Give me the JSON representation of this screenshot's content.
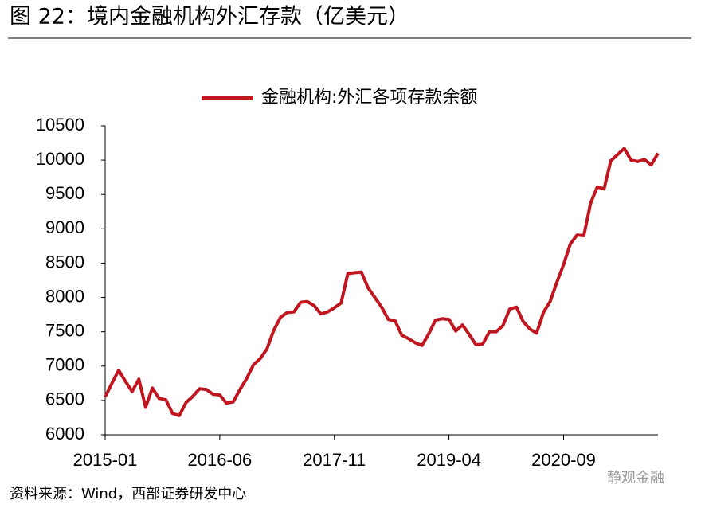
{
  "chart_data": {
    "type": "line",
    "title": "图 22：境内金融机构外汇存款（亿美元）",
    "source": "资料来源：Wind，西部证券研发中心",
    "watermark": "静观金融",
    "categories": [
      "2015-01",
      null,
      null,
      null,
      null,
      null,
      null,
      null,
      null,
      null,
      null,
      null,
      null,
      null,
      null,
      null,
      null,
      "2016-06",
      null,
      null,
      null,
      null,
      null,
      null,
      null,
      null,
      null,
      null,
      null,
      null,
      null,
      null,
      null,
      null,
      "2017-11",
      null,
      null,
      null,
      null,
      null,
      null,
      null,
      null,
      null,
      null,
      null,
      null,
      null,
      null,
      null,
      null,
      "2019-04",
      null,
      null,
      null,
      null,
      null,
      null,
      null,
      null,
      null,
      null,
      null,
      null,
      null,
      null,
      null,
      null,
      "2020-09",
      null,
      null,
      null,
      null,
      null,
      null,
      null,
      null,
      null,
      null,
      null,
      null,
      null,
      null
    ],
    "series": [
      {
        "name": "金融机构:外汇各项存款余额",
        "color": "#c0161f",
        "values": [
          6550,
          6750,
          6940,
          6780,
          6630,
          6810,
          6400,
          6680,
          6530,
          6510,
          6310,
          6280,
          6470,
          6560,
          6670,
          6660,
          6590,
          6580,
          6460,
          6480,
          6660,
          6820,
          7020,
          7110,
          7250,
          7520,
          7710,
          7780,
          7790,
          7930,
          7940,
          7880,
          7760,
          7790,
          7850,
          7920,
          8350,
          8360,
          8370,
          8140,
          8000,
          7860,
          7680,
          7660,
          7450,
          7400,
          7340,
          7300,
          7470,
          7670,
          7690,
          7680,
          7510,
          7600,
          7460,
          7310,
          7320,
          7500,
          7500,
          7590,
          7830,
          7860,
          7650,
          7540,
          7480,
          7780,
          7940,
          8220,
          8480,
          8780,
          8910,
          8900,
          9370,
          9610,
          9580,
          9990,
          10080,
          10170,
          10000,
          9980,
          10010,
          9930,
          10100
        ]
      }
    ],
    "ylim": [
      6000,
      10500
    ],
    "yticks": [
      6000,
      6500,
      7000,
      7500,
      8000,
      8500,
      9000,
      9500,
      10000,
      10500
    ],
    "legend": "top"
  }
}
